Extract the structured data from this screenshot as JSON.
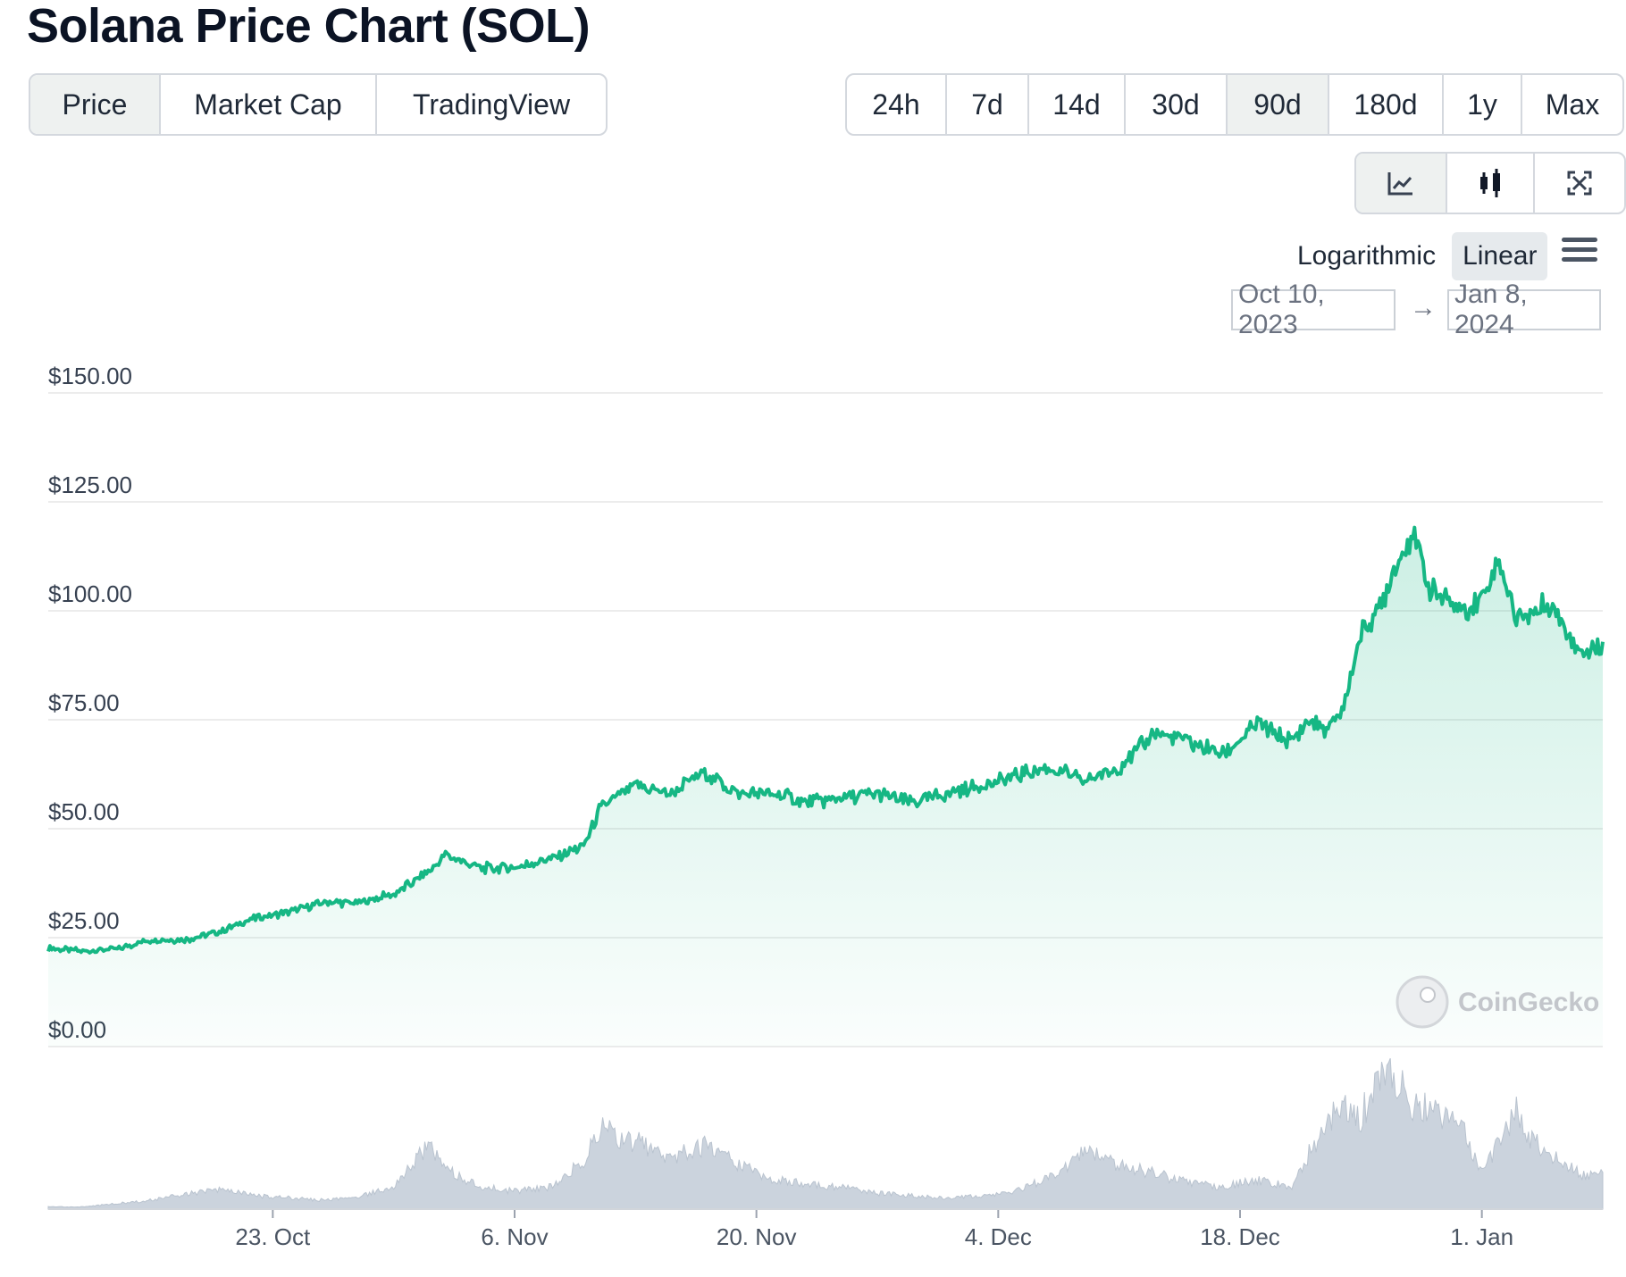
{
  "title": "Solana Price Chart (SOL)",
  "tabs": [
    {
      "label": "Price",
      "active": true
    },
    {
      "label": "Market Cap",
      "active": false
    },
    {
      "label": "TradingView",
      "active": false
    }
  ],
  "ranges": [
    {
      "label": "24h",
      "active": false
    },
    {
      "label": "7d",
      "active": false
    },
    {
      "label": "14d",
      "active": false
    },
    {
      "label": "30d",
      "active": false
    },
    {
      "label": "90d",
      "active": true
    },
    {
      "label": "180d",
      "active": false
    },
    {
      "label": "1y",
      "active": false
    },
    {
      "label": "Max",
      "active": false
    }
  ],
  "views": [
    {
      "icon": "line-chart-icon",
      "active": true
    },
    {
      "icon": "candlestick-icon",
      "active": false
    },
    {
      "icon": "fullscreen-icon",
      "active": false
    }
  ],
  "scale": {
    "log_label": "Logarithmic",
    "linear_label": "Linear",
    "active": "Linear"
  },
  "date_range": {
    "from": "Oct 10, 2023",
    "arrow": "→",
    "to": "Jan 8, 2024"
  },
  "watermark": "CoinGecko",
  "colors": {
    "line": "#16b784",
    "volume": "#cbd3dd",
    "grid": "#ececec"
  },
  "chart_data": {
    "type": "area",
    "ylim": [
      0,
      150
    ],
    "ytick_labels": [
      "$0.00",
      "$25.00",
      "$50.00",
      "$75.00",
      "$100.00",
      "$125.00",
      "$150.00"
    ],
    "xtick_labels": [
      "23. Oct",
      "6. Nov",
      "20. Nov",
      "4. Dec",
      "18. Dec",
      "1. Jan"
    ],
    "xtick_dates": [
      "2023-10-23",
      "2023-11-06",
      "2023-11-20",
      "2023-12-04",
      "2023-12-18",
      "2024-01-01"
    ],
    "x": [
      "2023-10-10",
      "2023-10-12",
      "2023-10-14",
      "2023-10-16",
      "2023-10-18",
      "2023-10-20",
      "2023-10-22",
      "2023-10-24",
      "2023-10-26",
      "2023-10-28",
      "2023-10-30",
      "2023-11-01",
      "2023-11-02",
      "2023-11-04",
      "2023-11-06",
      "2023-11-08",
      "2023-11-10",
      "2023-11-11",
      "2023-11-13",
      "2023-11-15",
      "2023-11-17",
      "2023-11-19",
      "2023-11-21",
      "2023-11-23",
      "2023-11-25",
      "2023-11-27",
      "2023-11-29",
      "2023-12-01",
      "2023-12-03",
      "2023-12-05",
      "2023-12-07",
      "2023-12-09",
      "2023-12-11",
      "2023-12-13",
      "2023-12-15",
      "2023-12-17",
      "2023-12-19",
      "2023-12-21",
      "2023-12-22",
      "2023-12-23",
      "2023-12-24",
      "2023-12-25",
      "2023-12-26",
      "2023-12-27",
      "2023-12-28",
      "2023-12-29",
      "2023-12-30",
      "2023-12-31",
      "2024-01-01",
      "2024-01-02",
      "2024-01-03",
      "2024-01-04",
      "2024-01-05",
      "2024-01-06",
      "2024-01-07",
      "2024-01-08"
    ],
    "series": [
      {
        "values": [
          22.5,
          22.0,
          22.5,
          24.5,
          24.5,
          26.5,
          29.5,
          31.0,
          33.0,
          33.0,
          35.0,
          40.0,
          44.0,
          41.0,
          41.0,
          43.0,
          46.0,
          55.0,
          60.0,
          58.0,
          63.0,
          58.0,
          58.0,
          56.0,
          57.0,
          58.0,
          56.0,
          58.0,
          60.0,
          62.0,
          64.0,
          61.0,
          64.0,
          72.0,
          70.0,
          67.0,
          74.0,
          70.0,
          75.0,
          72.0,
          78.0,
          95.0,
          100.0,
          110.0,
          118.0,
          105.0,
          102.0,
          100.0,
          103.0,
          112.0,
          98.0,
          100.0,
          102.0,
          95.0,
          90.0,
          93.0
        ]
      },
      {
        "values": [
          1.0,
          1.0,
          2.5,
          4.0,
          7.0,
          8.5,
          6.0,
          5.0,
          4.0,
          5.5,
          10.0,
          28.0,
          18.0,
          10.0,
          8.0,
          10.0,
          22.0,
          36.0,
          30.0,
          24.0,
          28.0,
          20.0,
          13.0,
          11.0,
          10.0,
          7.0,
          6.0,
          5.0,
          6.0,
          8.0,
          14.0,
          26.0,
          20.0,
          16.0,
          12.0,
          10.0,
          13.0,
          10.0,
          25.0,
          38.0,
          48.0,
          42.0,
          56.0,
          60.0,
          48.0,
          46.0,
          40.0,
          33.0,
          16.0,
          30.0,
          44.0,
          30.0,
          24.0,
          20.0,
          14.0,
          18.0
        ]
      }
    ]
  }
}
